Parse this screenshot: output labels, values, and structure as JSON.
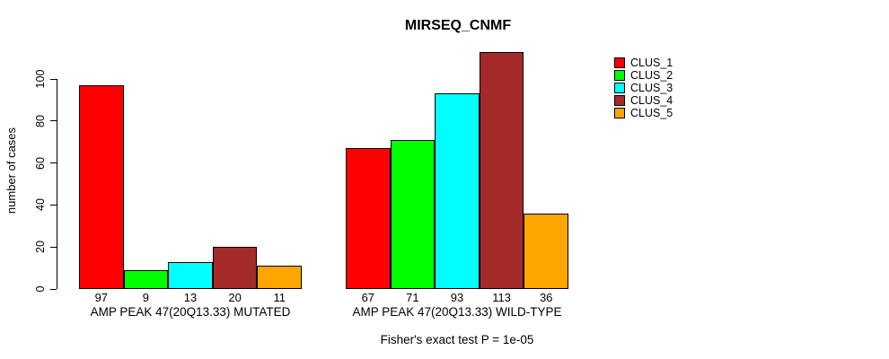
{
  "title": "MIRSEQ_CNMF",
  "footer": "Fisher's exact test P = 1e-05",
  "y_axis": {
    "label": "number of cases",
    "ticks": [
      0,
      20,
      40,
      60,
      80,
      100
    ]
  },
  "legend": {
    "items": [
      {
        "label": "CLUS_1",
        "color": "#FF0000"
      },
      {
        "label": "CLUS_2",
        "color": "#00FF00"
      },
      {
        "label": "CLUS_3",
        "color": "#00FFFF"
      },
      {
        "label": "CLUS_4",
        "color": "#A52A2A"
      },
      {
        "label": "CLUS_5",
        "color": "#FFA500"
      }
    ]
  },
  "chart_data": {
    "type": "bar",
    "title": "MIRSEQ_CNMF",
    "xlabel": "",
    "ylabel": "number of cases",
    "ylim": [
      0,
      113
    ],
    "axis_ticks": [
      0,
      20,
      40,
      60,
      80,
      100
    ],
    "grid": false,
    "legend_position": "right",
    "series_labels": [
      "CLUS_1",
      "CLUS_2",
      "CLUS_3",
      "CLUS_4",
      "CLUS_5"
    ],
    "colors": [
      "#FF0000",
      "#00FF00",
      "#00FFFF",
      "#A52A2A",
      "#FFA500"
    ],
    "groups": [
      {
        "label": "AMP PEAK 47(20Q13.33) MUTATED",
        "values": [
          97,
          9,
          13,
          20,
          11
        ]
      },
      {
        "label": "AMP PEAK 47(20Q13.33) WILD-TYPE",
        "values": [
          67,
          71,
          93,
          113,
          36
        ]
      }
    ],
    "annotation": "Fisher's exact test P = 1e-05"
  }
}
